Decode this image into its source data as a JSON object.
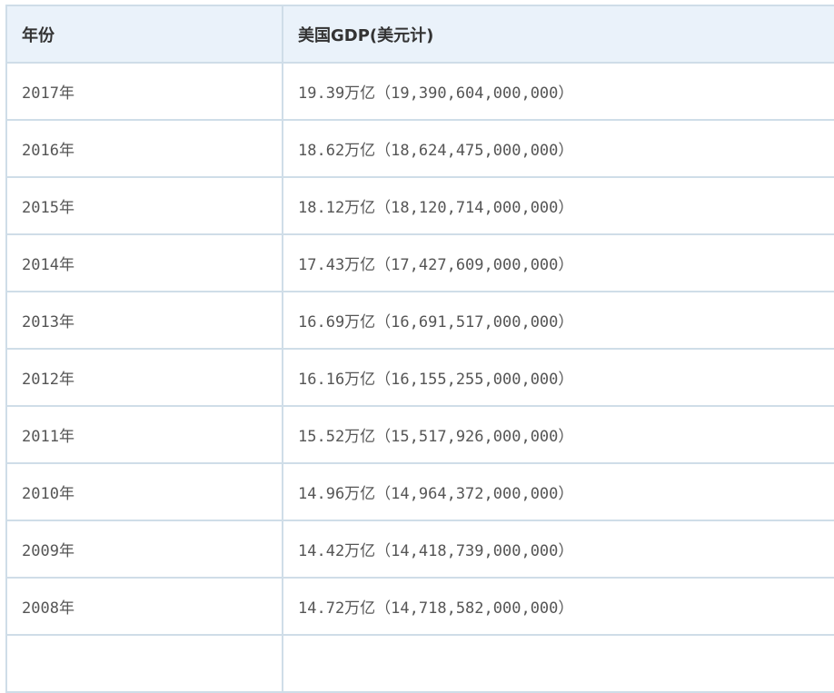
{
  "table": {
    "headers": [
      "年份",
      "美国GDP(美元计)"
    ],
    "rows": [
      {
        "year": "2017年",
        "gdp": "19.39万亿（19,390,604,000,000）"
      },
      {
        "year": "2016年",
        "gdp": "18.62万亿（18,624,475,000,000）"
      },
      {
        "year": "2015年",
        "gdp": "18.12万亿（18,120,714,000,000）"
      },
      {
        "year": "2014年",
        "gdp": "17.43万亿（17,427,609,000,000）"
      },
      {
        "year": "2013年",
        "gdp": "16.69万亿（16,691,517,000,000）"
      },
      {
        "year": "2012年",
        "gdp": "16.16万亿（16,155,255,000,000）"
      },
      {
        "year": "2011年",
        "gdp": "15.52万亿（15,517,926,000,000）"
      },
      {
        "year": "2010年",
        "gdp": "14.96万亿（14,964,372,000,000）"
      },
      {
        "year": "2009年",
        "gdp": "14.42万亿（14,418,739,000,000）"
      },
      {
        "year": "2008年",
        "gdp": "14.72万亿（14,718,582,000,000）"
      }
    ]
  },
  "colors": {
    "header_bg": "#eaf2fa",
    "border": "#cfdde8",
    "text": "#555555"
  }
}
